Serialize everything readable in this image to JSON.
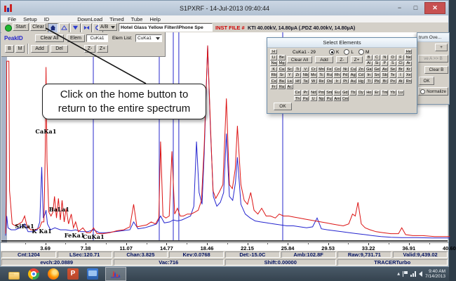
{
  "window": {
    "title": "S1PXRF - 14-Jul-2013 09:40:44"
  },
  "menu": {
    "items": [
      "File",
      "Setup",
      "ID",
      "DownLoad",
      "Timed",
      "Tube",
      "Help"
    ]
  },
  "toolbar": {
    "start": "Start",
    "clear": "Clear",
    "ab": "A/B",
    "view_buttons": [
      {
        "name": "home-icon",
        "active": true
      },
      {
        "name": "zoom-up-icon",
        "active": false
      },
      {
        "name": "zoom-down-icon",
        "active": false
      },
      {
        "name": "zoom-horizontal-icon",
        "active": false
      },
      {
        "name": "zoom-reset-icon",
        "active": false
      }
    ],
    "filename": "Hotel Glass Yellow Filter/iPhone Spe",
    "inst_file": "INST FILE #",
    "tube_status": "KTI 40.00kV, 14.80µA (.PDZ 40.00kV, 14.80µA)"
  },
  "peakid": {
    "label": "PeakID",
    "b": "B",
    "m": "M",
    "add": "Add",
    "clear_all": "Clear All",
    "del": "Del",
    "elem": "Elem",
    "elem_value": "CuKa1",
    "z_minus": "Z-",
    "z_plus": "Z+",
    "elem_list_label": "Elem List:",
    "elem_list_value": "CuKa1"
  },
  "annotation": {
    "lines": [
      "Click on the home button to",
      "return to the entire spectrum"
    ]
  },
  "select_elements": {
    "title": "Select Elements",
    "line_label": "CuKa1 - 29",
    "radios": [
      {
        "label": "K",
        "selected": true
      },
      {
        "label": "L",
        "selected": false
      },
      {
        "label": "M",
        "selected": false
      }
    ],
    "clear_all": "Clear All",
    "add": "Add",
    "z_minus": "Z-",
    "z_plus": "Z+",
    "ok": "OK",
    "periodic_rows": [
      "H:1,He:18",
      "Li:1,Be:2,B:13,C:14,N:15,O:16,F:17,Ne:18",
      "Na:1,Mg:2,Al:13,Si:14,P:15,S:16,Cl:17,Ar:18",
      "K:1,Ca:2,Sc:3,Ti:4,V:5,Cr:6,Mn:7,Fe:8,Co:9,Ni:10,Cu:11,Zn:12,Ga:13,Ge:14,As:15,Se:16,Br:17,Kr:18",
      "Rb:1,Sr:2,Y:3,Zr:4,Nb:5,Mo:6,Tc:7,Ru:8,Rh:9,Pd:10,Ag:11,Cd:12,In:13,Sn:14,Sb:15,Te:16,I:17,Xe:18",
      "Cs:1,Ba:2,La:3,Hf:4,Ta:5,W:6,Re:7,Os:8,Ir:9,Pt:10,Au:11,Hg:12,Tl:13,Pb:14,Bi:15,Po:16,At:17,Rn:18",
      "Fr:1,Ra:2,Ac:3",
      "Ce:4,Pr:5,Nd:6,Pm:7,Sm:8,Eu:9,Gd:10,Tb:11,Dy:12,Ho:13,Er:14,Tm:15,Yb:16,Lu:17",
      "Th:4,Pa:5,U:6,Np:7,Pu:8,Am:9,Cm:10"
    ]
  },
  "overlay_window": {
    "title": "trum Ove...",
    "plus": "+",
    "move_ab": "ve A >> B",
    "clear_b": "Clear B",
    "ok": "OK",
    "normalize": "Normalize"
  },
  "chart_data": {
    "type": "line",
    "title": "",
    "x_axis": {
      "unit": "keV",
      "range": [
        0,
        40.8
      ],
      "tick_values": [
        3.69,
        7.38,
        11.07,
        14.77,
        18.46,
        22.15,
        25.84,
        29.53,
        33.22,
        36.91,
        40.6
      ]
    },
    "y_axis": {
      "unit": "intensity_percent_of_chart_height",
      "range": [
        0,
        100
      ]
    },
    "marker_lines": {
      "color": "#3b3bd0",
      "kev": [
        8.01,
        14.04,
        15.32,
        15.83,
        25.32
      ]
    },
    "peak_labels": [
      {
        "text": "SiKa1",
        "kev": 1.74,
        "y": 271
      },
      {
        "text": "K Ka1",
        "kev": 3.31,
        "y": 278
      },
      {
        "text": "CaKa1",
        "kev": 3.69,
        "y": 136
      },
      {
        "text": "BaLa1",
        "kev": 4.9,
        "y": 247
      },
      {
        "text": "FeKa1",
        "kev": 6.3,
        "y": 284
      },
      {
        "text": "CuKa1",
        "kev": 8.04,
        "y": 286
      }
    ],
    "series": [
      {
        "name": "spectrum A (red)",
        "color": "#dc1414",
        "points": [
          [
            0,
            3
          ],
          [
            0.06,
            20
          ],
          [
            0.1,
            91
          ],
          [
            0.3,
            91
          ],
          [
            0.36,
            25
          ],
          [
            0.6,
            8
          ],
          [
            0.9,
            7
          ],
          [
            1.2,
            8
          ],
          [
            1.5,
            9
          ],
          [
            1.74,
            12
          ],
          [
            1.95,
            7
          ],
          [
            2.3,
            5
          ],
          [
            2.7,
            5
          ],
          [
            3.1,
            6
          ],
          [
            3.31,
            9
          ],
          [
            3.5,
            9
          ],
          [
            3.62,
            45
          ],
          [
            3.69,
            88
          ],
          [
            3.78,
            40
          ],
          [
            3.95,
            14
          ],
          [
            4.15,
            12
          ],
          [
            4.32,
            14
          ],
          [
            4.47,
            22
          ],
          [
            4.65,
            11
          ],
          [
            4.83,
            21
          ],
          [
            5.0,
            10
          ],
          [
            5.16,
            20
          ],
          [
            5.35,
            9
          ],
          [
            5.53,
            16
          ],
          [
            5.75,
            8
          ],
          [
            6.0,
            13
          ],
          [
            6.2,
            6
          ],
          [
            6.4,
            9
          ],
          [
            6.65,
            4
          ],
          [
            7.06,
            6
          ],
          [
            7.4,
            3.5
          ],
          [
            7.75,
            3.5
          ],
          [
            8.04,
            6
          ],
          [
            8.35,
            3
          ],
          [
            8.9,
            3
          ],
          [
            9.5,
            3.5
          ],
          [
            10.2,
            4.5
          ],
          [
            10.8,
            5
          ],
          [
            11.35,
            6.5
          ],
          [
            11.7,
            18
          ],
          [
            12.0,
            6.5
          ],
          [
            12.45,
            7
          ],
          [
            12.9,
            7.5
          ],
          [
            13.3,
            9
          ],
          [
            13.7,
            8
          ],
          [
            14.0,
            11
          ],
          [
            14.16,
            50
          ],
          [
            14.38,
            12
          ],
          [
            14.65,
            11
          ],
          [
            14.95,
            12
          ],
          [
            15.2,
            45
          ],
          [
            15.45,
            13
          ],
          [
            15.7,
            16
          ],
          [
            15.95,
            12
          ],
          [
            16.25,
            12
          ],
          [
            16.6,
            13
          ],
          [
            16.95,
            13
          ],
          [
            17.3,
            14
          ],
          [
            17.6,
            15
          ],
          [
            17.9,
            20
          ],
          [
            18.15,
            48
          ],
          [
            18.46,
            99
          ],
          [
            18.72,
            58
          ],
          [
            18.95,
            25
          ],
          [
            19.2,
            21
          ],
          [
            19.5,
            24
          ],
          [
            19.85,
            28
          ],
          [
            20.17,
            72
          ],
          [
            20.45,
            28
          ],
          [
            20.72,
            26
          ],
          [
            20.98,
            36
          ],
          [
            21.18,
            58
          ],
          [
            21.5,
            28
          ],
          [
            21.8,
            20
          ],
          [
            22.1,
            18
          ],
          [
            22.4,
            24
          ],
          [
            22.7,
            15
          ],
          [
            23.05,
            13
          ],
          [
            23.4,
            16
          ],
          [
            23.8,
            12
          ],
          [
            24.2,
            12
          ],
          [
            24.65,
            11
          ],
          [
            25.0,
            13
          ],
          [
            25.4,
            12
          ],
          [
            25.85,
            12
          ],
          [
            26.3,
            11.5
          ],
          [
            26.8,
            11
          ],
          [
            27.3,
            10.5
          ],
          [
            27.8,
            10
          ],
          [
            28.3,
            9.5
          ],
          [
            28.8,
            9
          ],
          [
            29.3,
            8.5
          ],
          [
            29.8,
            8
          ],
          [
            30.3,
            7.5
          ],
          [
            30.85,
            7
          ],
          [
            31.35,
            8
          ],
          [
            31.7,
            13
          ],
          [
            31.95,
            12
          ],
          [
            32.2,
            19
          ],
          [
            32.5,
            8
          ],
          [
            32.85,
            6
          ],
          [
            33.3,
            5
          ],
          [
            33.85,
            4
          ],
          [
            34.5,
            3.5
          ],
          [
            35.2,
            3
          ],
          [
            35.9,
            3
          ],
          [
            36.2,
            6
          ],
          [
            36.55,
            2.5
          ],
          [
            37.2,
            2
          ],
          [
            38.1,
            2
          ],
          [
            39.2,
            1.5
          ],
          [
            40.6,
            1.5
          ]
        ]
      },
      {
        "name": "spectrum B (blue)",
        "color": "#2525cf",
        "points": [
          [
            0,
            2
          ],
          [
            0.1,
            12
          ],
          [
            0.22,
            6
          ],
          [
            0.5,
            5
          ],
          [
            0.9,
            5
          ],
          [
            1.3,
            6
          ],
          [
            1.74,
            8
          ],
          [
            2.05,
            4
          ],
          [
            2.5,
            4
          ],
          [
            2.9,
            5
          ],
          [
            3.12,
            9
          ],
          [
            3.3,
            37
          ],
          [
            3.44,
            11
          ],
          [
            3.6,
            13
          ],
          [
            3.69,
            15
          ],
          [
            3.82,
            8
          ],
          [
            4.1,
            5
          ],
          [
            4.5,
            6
          ],
          [
            5.0,
            5
          ],
          [
            5.5,
            5
          ],
          [
            6.0,
            4.5
          ],
          [
            6.4,
            5
          ],
          [
            6.9,
            4
          ],
          [
            7.5,
            4
          ],
          [
            8.04,
            5
          ],
          [
            8.55,
            3.5
          ],
          [
            9.2,
            3.5
          ],
          [
            10.0,
            4
          ],
          [
            10.7,
            4.5
          ],
          [
            11.35,
            5
          ],
          [
            11.7,
            9
          ],
          [
            12.1,
            5.5
          ],
          [
            12.7,
            6
          ],
          [
            13.3,
            7
          ],
          [
            13.8,
            8
          ],
          [
            14.16,
            12
          ],
          [
            14.5,
            8.5
          ],
          [
            15.0,
            9
          ],
          [
            15.32,
            10
          ],
          [
            15.7,
            9.5
          ],
          [
            16.1,
            10
          ],
          [
            16.5,
            11
          ],
          [
            16.9,
            12
          ],
          [
            17.2,
            17
          ],
          [
            17.44,
            50
          ],
          [
            17.68,
            24
          ],
          [
            17.95,
            18
          ],
          [
            18.15,
            44
          ],
          [
            18.46,
            99
          ],
          [
            18.72,
            56
          ],
          [
            18.98,
            22
          ],
          [
            19.3,
            17
          ],
          [
            19.62,
            19
          ],
          [
            19.92,
            24
          ],
          [
            20.17,
            54
          ],
          [
            20.45,
            22
          ],
          [
            20.75,
            20
          ],
          [
            21.0,
            29
          ],
          [
            21.18,
            42
          ],
          [
            21.5,
            18
          ],
          [
            21.9,
            13
          ],
          [
            22.35,
            11
          ],
          [
            22.8,
            9.5
          ],
          [
            23.3,
            9
          ],
          [
            23.9,
            8.5
          ],
          [
            24.5,
            8
          ],
          [
            25.1,
            7.5
          ],
          [
            25.7,
            7
          ],
          [
            26.3,
            7
          ],
          [
            26.9,
            6.5
          ],
          [
            27.5,
            6
          ],
          [
            28.05,
            6.5
          ],
          [
            28.46,
            11
          ],
          [
            28.85,
            5.5
          ],
          [
            29.4,
            5
          ],
          [
            30.0,
            4.5
          ],
          [
            30.7,
            4
          ],
          [
            31.4,
            3.5
          ],
          [
            32.1,
            3
          ],
          [
            32.85,
            2.5
          ],
          [
            33.5,
            2
          ],
          [
            34.3,
            1.5
          ],
          [
            35.2,
            1.2
          ],
          [
            36.2,
            1
          ],
          [
            37.5,
            1
          ],
          [
            39,
            0.8
          ],
          [
            40.6,
            0.8
          ]
        ]
      }
    ]
  },
  "status_row1": [
    "Cnt:1204",
    "LSec:120.71",
    "Chan:3.825",
    "Kev:0.0768",
    "Det:-15.0C",
    "Amb:102.8F",
    "Raw:9,731.71",
    "Valid:9,439.02"
  ],
  "status_row2": [
    "evch:20.0889",
    "Vac:716",
    "Shift:0.00000",
    "TRACERTurbo"
  ],
  "taskbar": {
    "icons": [
      "file-explorer",
      "chrome",
      "firefox",
      "powerpoint",
      "display-app",
      "s1pxrf"
    ],
    "active_icon": "s1pxrf",
    "clock": {
      "time": "9:40 AM",
      "date": "7/14/2013"
    }
  }
}
